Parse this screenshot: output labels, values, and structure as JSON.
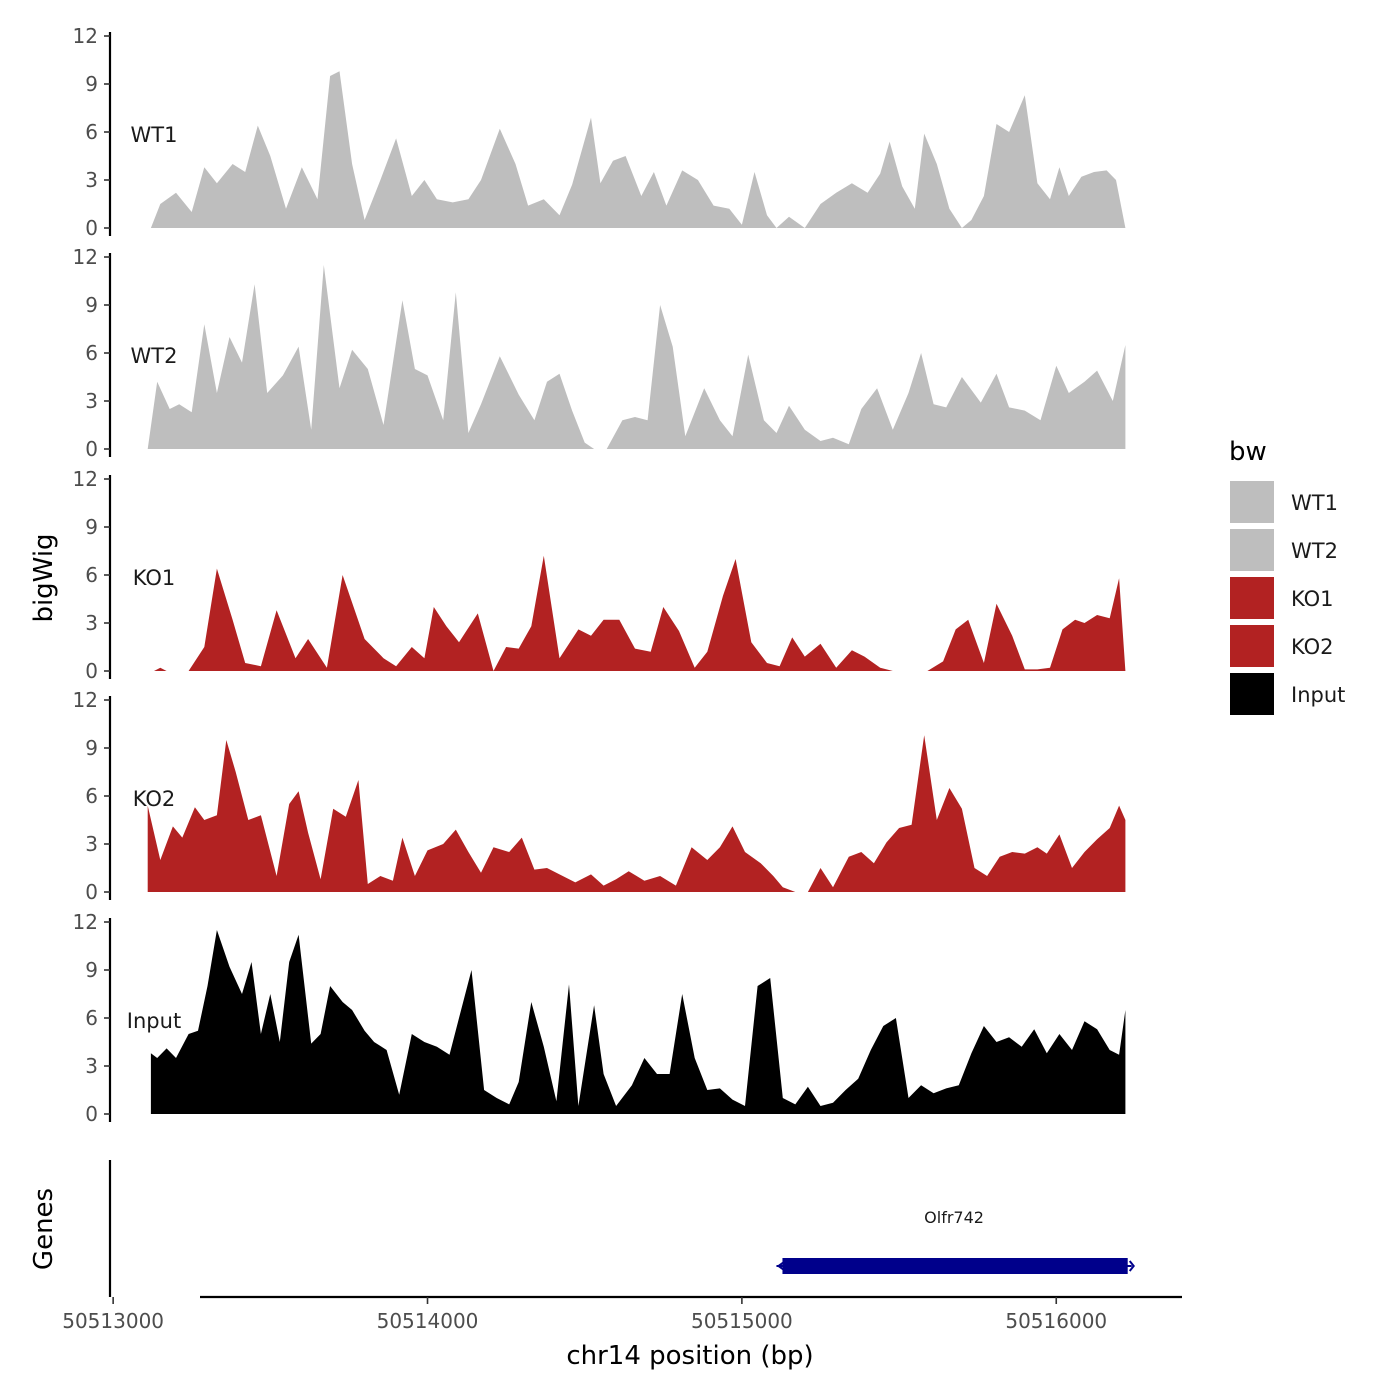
{
  "chart_data": {
    "type": "area",
    "title": "",
    "xlabel": "chr14 position (bp)",
    "ylabel": "bigWig",
    "genes_label": "Genes",
    "xlim": [
      50512990,
      50516400
    ],
    "xticks": [
      50513000,
      50514000,
      50515000,
      50516000
    ],
    "xtick_labels": [
      "50513000",
      "50514000",
      "50515000",
      "50516000"
    ],
    "ylim": [
      0,
      12
    ],
    "yticks": [
      0,
      3,
      6,
      9,
      12
    ],
    "ytick_labels": [
      "0",
      "3",
      "6",
      "9",
      "12"
    ],
    "legend": {
      "title": "bw",
      "position": "right",
      "entries": [
        {
          "label": "WT1",
          "color": "#bebebe"
        },
        {
          "label": "WT2",
          "color": "#bebebe"
        },
        {
          "label": "KO1",
          "color": "#b22222"
        },
        {
          "label": "KO2",
          "color": "#b22222"
        },
        {
          "label": "Input",
          "color": "#000000"
        }
      ]
    },
    "series": [
      {
        "name": "WT1",
        "color": "#bebebe",
        "x": [
          50513120,
          50513150,
          50513200,
          50513250,
          50513290,
          50513330,
          50513380,
          50513420,
          50513460,
          50513500,
          50513550,
          50513600,
          50513650,
          50513690,
          50513720,
          50513760,
          50513800,
          50513850,
          50513900,
          50513950,
          50513990,
          50514030,
          50514080,
          50514130,
          50514170,
          50514230,
          50514280,
          50514320,
          50514370,
          50514420,
          50514460,
          50514520,
          50514550,
          50514590,
          50514630,
          50514680,
          50514720,
          50514760,
          50514810,
          50514860,
          50514910,
          50514960,
          50515000,
          50515040,
          50515080,
          50515110,
          50515150,
          50515200,
          50515250,
          50515300,
          50515350,
          50515400,
          50515440,
          50515470,
          50515510,
          50515550,
          50515580,
          50515620,
          50515660,
          50515700,
          50515730,
          50515770,
          50515810,
          50515850,
          50515900,
          50515940,
          50515980,
          50516010,
          50516040,
          50516080,
          50516120,
          50516160,
          50516190,
          50516220
        ],
        "values": [
          0,
          1.5,
          2.2,
          1.0,
          3.8,
          2.8,
          4.0,
          3.5,
          6.4,
          4.5,
          1.2,
          3.8,
          1.8,
          9.5,
          9.8,
          4.0,
          0.5,
          3.0,
          5.6,
          2.0,
          3.0,
          1.8,
          1.6,
          1.8,
          3.0,
          6.2,
          4.0,
          1.4,
          1.8,
          0.8,
          2.7,
          6.9,
          2.8,
          4.2,
          4.5,
          2.0,
          3.5,
          1.4,
          3.6,
          3.0,
          1.4,
          1.2,
          0.2,
          3.5,
          0.8,
          0,
          0.7,
          0,
          1.5,
          2.2,
          2.8,
          2.2,
          3.4,
          5.4,
          2.6,
          1.2,
          5.9,
          4.0,
          1.2,
          0,
          0.5,
          2.0,
          6.5,
          6.0,
          8.3,
          2.8,
          1.8,
          3.8,
          2.0,
          3.2,
          3.5,
          3.6,
          3.0,
          0
        ]
      },
      {
        "name": "WT2",
        "color": "#bebebe",
        "x": [
          50513110,
          50513140,
          50513180,
          50513210,
          50513250,
          50513290,
          50513330,
          50513370,
          50513410,
          50513450,
          50513490,
          50513540,
          50513590,
          50513630,
          50513670,
          50513720,
          50513760,
          50513810,
          50513860,
          50513920,
          50513960,
          50514000,
          50514050,
          50514090,
          50514130,
          50514170,
          50514230,
          50514290,
          50514340,
          50514380,
          50514420,
          50514460,
          50514500,
          50514530,
          50514570,
          50514620,
          50514660,
          50514700,
          50514740,
          50514780,
          50514820,
          50514880,
          50514930,
          50514970,
          50515020,
          50515070,
          50515110,
          50515150,
          50515200,
          50515250,
          50515290,
          50515340,
          50515380,
          50515430,
          50515480,
          50515530,
          50515570,
          50515610,
          50515650,
          50515700,
          50515760,
          50515810,
          50515850,
          50515900,
          50515950,
          50516000,
          50516040,
          50516090,
          50516130,
          50516180,
          50516220
        ],
        "values": [
          0,
          4.2,
          2.5,
          2.8,
          2.3,
          7.8,
          3.5,
          7.0,
          5.4,
          10.3,
          3.5,
          4.6,
          6.4,
          1.2,
          11.5,
          3.8,
          6.2,
          5.0,
          1.5,
          9.3,
          5.0,
          4.6,
          1.8,
          9.8,
          1.0,
          2.8,
          5.8,
          3.4,
          1.8,
          4.2,
          4.7,
          2.4,
          0.4,
          0,
          0,
          1.8,
          2.0,
          1.8,
          9.0,
          6.4,
          0.8,
          3.8,
          1.8,
          0.8,
          5.9,
          1.8,
          1.0,
          2.7,
          1.2,
          0.5,
          0.7,
          0.3,
          2.5,
          3.8,
          1.2,
          3.5,
          6.0,
          2.8,
          2.6,
          4.5,
          2.9,
          4.7,
          2.6,
          2.4,
          1.8,
          5.2,
          3.5,
          4.2,
          4.9,
          3.0,
          6.5
        ]
      },
      {
        "name": "KO1",
        "color": "#b22222",
        "x": [
          50513130,
          50513150,
          50513170,
          50513210,
          50513240,
          50513290,
          50513330,
          50513380,
          50513420,
          50513470,
          50513520,
          50513580,
          50513620,
          50513680,
          50513730,
          50513800,
          50513860,
          50513900,
          50513950,
          50513990,
          50514020,
          50514060,
          50514100,
          50514160,
          50514210,
          50514250,
          50514290,
          50514330,
          50514370,
          50514420,
          50514480,
          50514520,
          50514560,
          50514610,
          50514660,
          50514710,
          50514750,
          50514800,
          50514850,
          50514890,
          50514940,
          50514980,
          50515030,
          50515080,
          50515120,
          50515160,
          50515200,
          50515250,
          50515300,
          50515350,
          50515390,
          50515440,
          50515480,
          50515530,
          50515590,
          50515640,
          50515680,
          50515720,
          50515770,
          50515810,
          50515860,
          50515900,
          50515940,
          50515980,
          50516020,
          50516060,
          50516090,
          50516130,
          50516170,
          50516200,
          50516220
        ],
        "values": [
          0,
          0.2,
          0,
          0,
          0,
          1.5,
          6.4,
          3.2,
          0.5,
          0.3,
          3.8,
          0.8,
          2.0,
          0.2,
          6.0,
          2.0,
          0.8,
          0.3,
          1.5,
          0.8,
          4.0,
          2.8,
          1.8,
          3.6,
          0,
          1.5,
          1.4,
          2.8,
          7.2,
          0.8,
          2.6,
          2.2,
          3.2,
          3.2,
          1.4,
          1.2,
          4.0,
          2.5,
          0.2,
          1.2,
          4.7,
          7.0,
          1.8,
          0.5,
          0.3,
          2.1,
          0.9,
          1.7,
          0.2,
          1.3,
          0.9,
          0.2,
          0,
          0,
          0,
          0.6,
          2.6,
          3.2,
          0.5,
          4.2,
          2.2,
          0.1,
          0.1,
          0.2,
          2.6,
          3.2,
          3.0,
          3.5,
          3.3,
          5.8,
          0
        ]
      },
      {
        "name": "KO2",
        "color": "#b22222",
        "x": [
          50513110,
          50513150,
          50513190,
          50513220,
          50513260,
          50513290,
          50513330,
          50513360,
          50513390,
          50513430,
          50513470,
          50513520,
          50513560,
          50513590,
          50513620,
          50513660,
          50513700,
          50513740,
          50513780,
          50513810,
          50513850,
          50513890,
          50513920,
          50513960,
          50514000,
          50514050,
          50514090,
          50514130,
          50514170,
          50514210,
          50514260,
          50514300,
          50514340,
          50514380,
          50514420,
          50514470,
          50514520,
          50514560,
          50514600,
          50514640,
          50514690,
          50514740,
          50514790,
          50514840,
          50514890,
          50514930,
          50514970,
          50515010,
          50515060,
          50515100,
          50515130,
          50515170,
          50515210,
          50515250,
          50515290,
          50515340,
          50515380,
          50515420,
          50515460,
          50515500,
          50515540,
          50515580,
          50515620,
          50515660,
          50515700,
          50515740,
          50515780,
          50515820,
          50515860,
          50515900,
          50515940,
          50515970,
          50516010,
          50516050,
          50516090,
          50516130,
          50516170,
          50516200,
          50516220
        ],
        "values": [
          5.4,
          2.0,
          4.1,
          3.4,
          5.3,
          4.5,
          4.8,
          9.5,
          7.5,
          4.5,
          4.8,
          1.0,
          5.5,
          6.3,
          3.7,
          0.8,
          5.2,
          4.7,
          7.0,
          0.5,
          1.0,
          0.7,
          3.4,
          1.0,
          2.6,
          3.0,
          3.9,
          2.5,
          1.2,
          2.8,
          2.5,
          3.4,
          1.4,
          1.5,
          1.1,
          0.6,
          1.1,
          0.4,
          0.8,
          1.3,
          0.7,
          1.0,
          0.4,
          2.8,
          2.0,
          2.8,
          4.1,
          2.5,
          1.8,
          1.0,
          0.3,
          0,
          0,
          1.5,
          0.3,
          2.2,
          2.5,
          1.8,
          3.1,
          4.0,
          4.2,
          9.8,
          4.5,
          6.5,
          5.2,
          1.5,
          1.0,
          2.2,
          2.5,
          2.4,
          2.8,
          2.4,
          3.6,
          1.5,
          2.5,
          3.3,
          4.0,
          5.4,
          4.5
        ]
      },
      {
        "name": "Input",
        "color": "#000000",
        "x": [
          50513120,
          50513140,
          50513170,
          50513200,
          50513240,
          50513270,
          50513300,
          50513330,
          50513370,
          50513410,
          50513440,
          50513470,
          50513500,
          50513530,
          50513560,
          50513590,
          50513630,
          50513660,
          50513690,
          50513730,
          50513760,
          50513800,
          50513830,
          50513870,
          50513910,
          50513950,
          50513990,
          50514030,
          50514070,
          50514100,
          50514140,
          50514180,
          50514220,
          50514260,
          50514290,
          50514330,
          50514370,
          50514410,
          50514450,
          50514480,
          50514530,
          50514560,
          50514600,
          50514650,
          50514690,
          50514730,
          50514770,
          50514810,
          50514850,
          50514890,
          50514930,
          50514970,
          50515010,
          50515050,
          50515090,
          50515130,
          50515170,
          50515210,
          50515250,
          50515290,
          50515330,
          50515370,
          50515410,
          50515450,
          50515490,
          50515530,
          50515570,
          50515610,
          50515650,
          50515690,
          50515730,
          50515770,
          50515810,
          50515850,
          50515890,
          50515930,
          50515970,
          50516010,
          50516050,
          50516090,
          50516130,
          50516170,
          50516200,
          50516220
        ],
        "values": [
          3.8,
          3.5,
          4.1,
          3.5,
          5.0,
          5.2,
          8.0,
          11.5,
          9.2,
          7.5,
          9.5,
          5.0,
          7.5,
          4.5,
          9.5,
          11.2,
          4.4,
          5.0,
          8.0,
          7.0,
          6.5,
          5.2,
          4.5,
          4.0,
          1.2,
          5.0,
          4.5,
          4.2,
          3.7,
          6.0,
          9.0,
          1.5,
          1.0,
          0.6,
          2.0,
          7.0,
          4.2,
          0.8,
          8.1,
          0.5,
          6.8,
          2.5,
          0.5,
          1.8,
          3.5,
          2.5,
          2.5,
          7.5,
          3.5,
          1.5,
          1.6,
          0.9,
          0.5,
          8.0,
          8.5,
          1.0,
          0.6,
          1.7,
          0.5,
          0.7,
          1.5,
          2.2,
          4.0,
          5.5,
          6.0,
          1.0,
          1.8,
          1.3,
          1.6,
          1.8,
          3.8,
          5.5,
          4.5,
          4.8,
          4.2,
          5.3,
          3.8,
          5.0,
          4.0,
          5.8,
          5.3,
          4.0,
          3.7,
          6.5
        ]
      }
    ],
    "genes": [
      {
        "name": "Olfr742",
        "start": 50515110,
        "end": 50516240,
        "strand": "-",
        "color": "#00008b"
      }
    ]
  }
}
